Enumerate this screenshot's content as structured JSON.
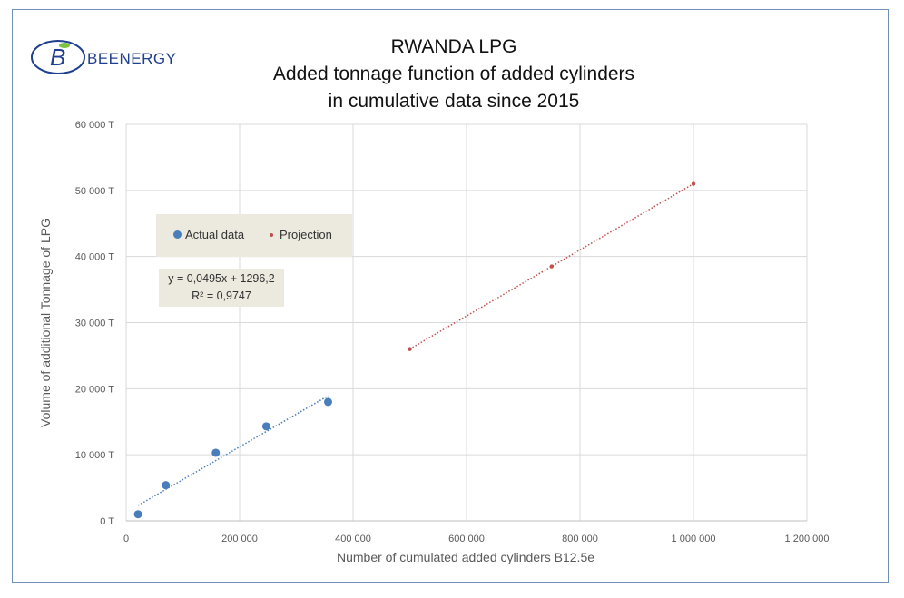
{
  "brand": {
    "name": "BEENERGY",
    "logo_letter": "B"
  },
  "chart_data": {
    "type": "scatter",
    "title_lines": [
      "RWANDA LPG",
      "Added tonnage function of added cylinders",
      "in cumulative data since 2015"
    ],
    "xlabel": "Number of cumulated added cylinders B12.5e",
    "ylabel": "Volume of additional Tonnage of LPG",
    "xlim": [
      0,
      1200000
    ],
    "ylim": [
      0,
      60000
    ],
    "x_ticks": [
      "0",
      "200 000",
      "400 000",
      "600 000",
      "800 000",
      "1 000 000",
      "1 200 000"
    ],
    "y_ticks": [
      "0 T",
      "10 000 T",
      "20 000 T",
      "30 000 T",
      "40 000 T",
      "50 000 T",
      "60 000 T"
    ],
    "grid": true,
    "legend_position": "upper-left",
    "series": [
      {
        "name": "Actual data",
        "color": "#4a7ebb",
        "points": [
          [
            21000,
            1000
          ],
          [
            70000,
            5400
          ],
          [
            158000,
            10300
          ],
          [
            247000,
            14300
          ],
          [
            356000,
            18000
          ]
        ],
        "trendline": {
          "x_range": [
            21000,
            356000
          ]
        }
      },
      {
        "name": "Projection",
        "color": "#c0504d",
        "points": [
          [
            500000,
            26000
          ],
          [
            750000,
            38500
          ],
          [
            1000000,
            51000
          ]
        ]
      }
    ],
    "trend_equation": {
      "equation": "y = 0,0495x + 1296,2",
      "r2": "R² = 0,9747",
      "slope": 0.0495,
      "intercept": 1296.2
    }
  }
}
